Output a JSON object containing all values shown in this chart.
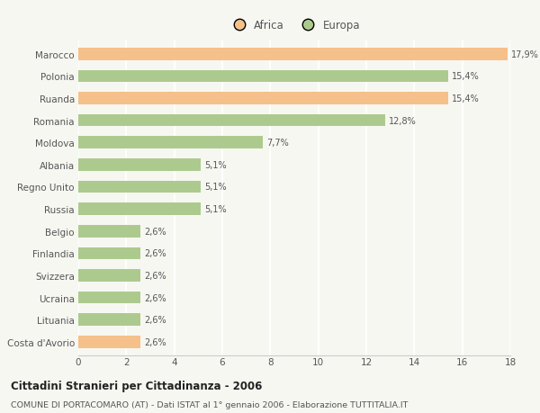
{
  "categories": [
    "Marocco",
    "Polonia",
    "Ruanda",
    "Romania",
    "Moldova",
    "Albania",
    "Regno Unito",
    "Russia",
    "Belgio",
    "Finlandia",
    "Svizzera",
    "Ucraina",
    "Lituania",
    "Costa d'Avorio"
  ],
  "values": [
    17.9,
    15.4,
    15.4,
    12.8,
    7.7,
    5.1,
    5.1,
    5.1,
    2.6,
    2.6,
    2.6,
    2.6,
    2.6,
    2.6
  ],
  "labels": [
    "17,9%",
    "15,4%",
    "15,4%",
    "12,8%",
    "7,7%",
    "5,1%",
    "5,1%",
    "5,1%",
    "2,6%",
    "2,6%",
    "2,6%",
    "2,6%",
    "2,6%",
    "2,6%"
  ],
  "continent": [
    "Africa",
    "Europa",
    "Africa",
    "Europa",
    "Europa",
    "Europa",
    "Europa",
    "Europa",
    "Europa",
    "Europa",
    "Europa",
    "Europa",
    "Europa",
    "Africa"
  ],
  "color_africa": "#F5C08A",
  "color_europa": "#ADCA8E",
  "bg_color": "#F7F7F2",
  "title": "Cittadini Stranieri per Cittadinanza - 2006",
  "subtitle": "COMUNE DI PORTACOMARO (AT) - Dati ISTAT al 1° gennaio 2006 - Elaborazione TUTTITALIA.IT",
  "xlim": [
    0,
    18
  ],
  "xticks": [
    0,
    2,
    4,
    6,
    8,
    10,
    12,
    14,
    16,
    18
  ],
  "legend_africa": "Africa",
  "legend_europa": "Europa",
  "bar_height": 0.55
}
